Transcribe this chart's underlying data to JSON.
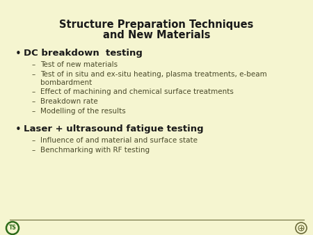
{
  "title_line1": "Structure Preparation Techniques",
  "title_line2": "and New Materials",
  "bg_color": "#f5f5d0",
  "title_color": "#1a1a1a",
  "bullet_color": "#1a1a1a",
  "text_color": "#4a4a2a",
  "line_color": "#6b6b3a",
  "bullet1": "DC breakdown  testing",
  "bullet2": "Laser + ultrasound fatigue testing",
  "sub1": [
    "Test of new materials",
    "Test of in situ and ex-situ heating, plasma treatments, e-beam\nbombardment",
    "Effect of machining and chemical surface treatments",
    "Breakdown rate",
    "Modelling of the results"
  ],
  "sub2": [
    "Influence of and material and surface state",
    "Benchmarking with RF testing"
  ],
  "title_fs": 10.5,
  "bullet_fs": 9.5,
  "sub_fs": 7.5
}
